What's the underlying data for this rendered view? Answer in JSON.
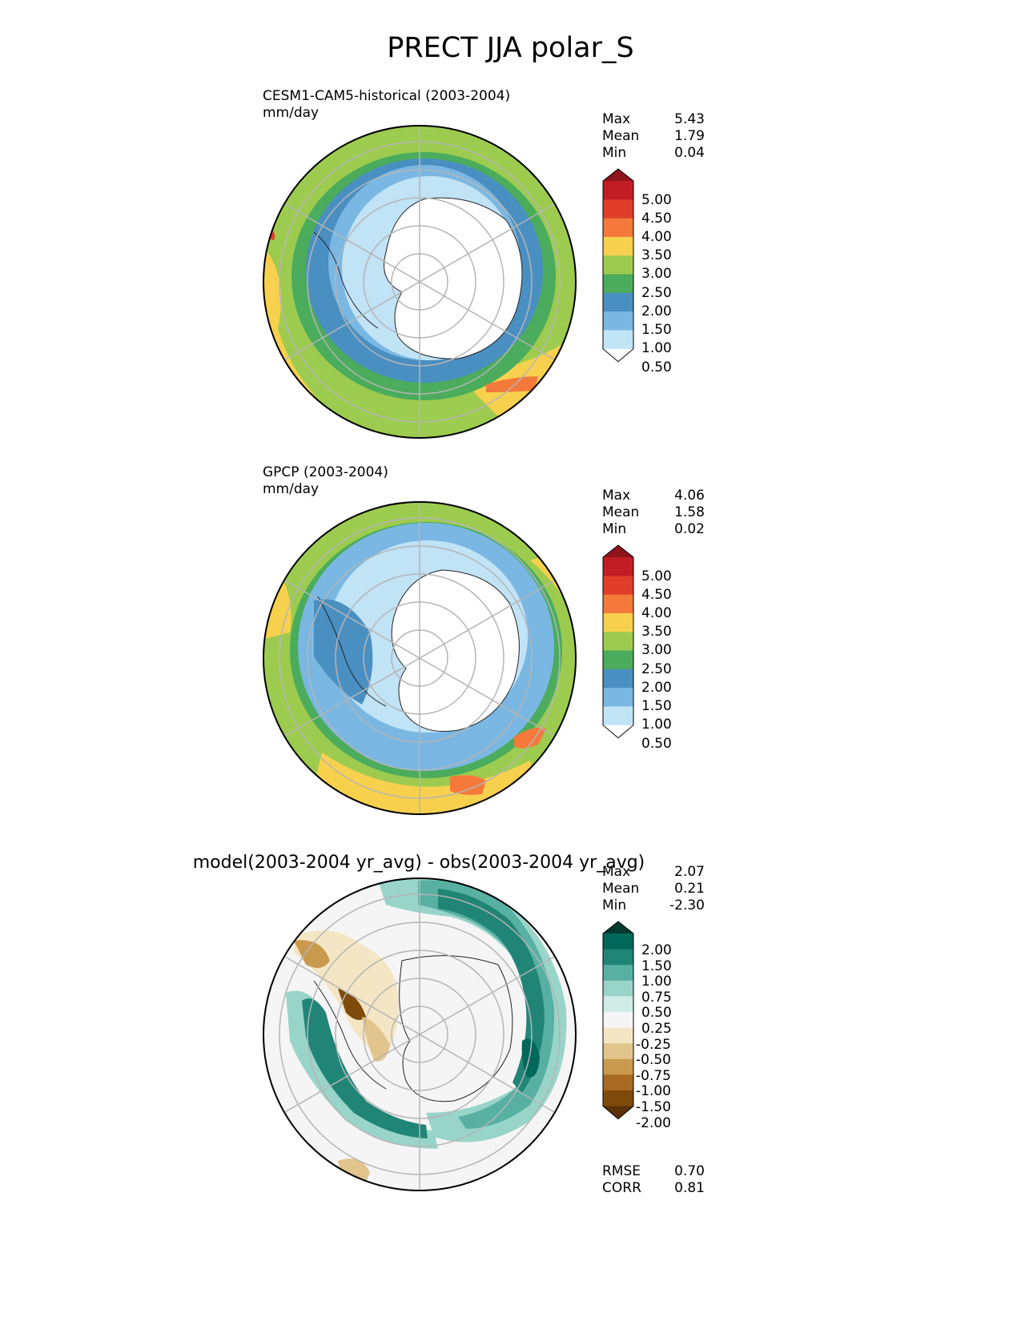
{
  "figure": {
    "title": "PRECT JJA polar_S"
  },
  "panels": [
    {
      "name": "test",
      "subtitle": "CESM1-CAM5-historical (2003-2004)",
      "units": "mm/day",
      "stats": [
        {
          "label": "Max",
          "value": "5.43"
        },
        {
          "label": "Mean",
          "value": "1.79"
        },
        {
          "label": "Min",
          "value": "0.04"
        }
      ]
    },
    {
      "name": "reference",
      "subtitle": "GPCP (2003-2004)",
      "units": "mm/day",
      "stats": [
        {
          "label": "Max",
          "value": "4.06"
        },
        {
          "label": "Mean",
          "value": "1.58"
        },
        {
          "label": "Min",
          "value": "0.02"
        }
      ]
    },
    {
      "name": "difference",
      "subtitle": "model(2003-2004 yr_avg) - obs(2003-2004 yr_avg)",
      "stats": [
        {
          "label": "Max",
          "value": "2.07"
        },
        {
          "label": "Mean",
          "value": "0.21"
        },
        {
          "label": "Min",
          "value": "-2.30"
        }
      ],
      "metrics": [
        {
          "label": "RMSE",
          "value": "0.70"
        },
        {
          "label": "CORR",
          "value": "0.81"
        }
      ]
    }
  ],
  "colorbars": {
    "precip": {
      "ticks": [
        "5.00",
        "4.50",
        "4.00",
        "3.50",
        "3.00",
        "2.50",
        "2.00",
        "1.50",
        "1.00",
        "0.50"
      ],
      "colors_top_to_bottom": [
        "#8f141c",
        "#c01d24",
        "#e03e2b",
        "#f4793b",
        "#f7d14e",
        "#9dcb4f",
        "#4aac5c",
        "#4a8fc2",
        "#7ab8e3",
        "#c1e3f6",
        "#ffffff"
      ]
    },
    "diff": {
      "ticks": [
        "2.00",
        "1.50",
        "1.00",
        "0.75",
        "0.50",
        "0.25",
        "-0.25",
        "-0.50",
        "-0.75",
        "-1.00",
        "-1.50",
        "-2.00"
      ],
      "colors_top_to_bottom": [
        "#013b2f",
        "#00675b",
        "#208577",
        "#57b0a2",
        "#98d5c8",
        "#d0ece6",
        "#f5f5f5",
        "#f4e6c4",
        "#e2c58c",
        "#c99a4e",
        "#a86a22",
        "#7f4b0a",
        "#5a3107"
      ]
    }
  }
}
